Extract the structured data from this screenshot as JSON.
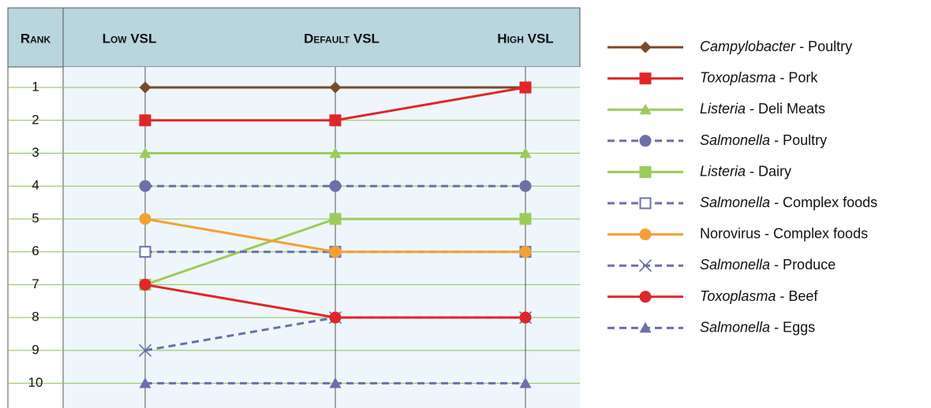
{
  "chart_data": {
    "type": "line",
    "rank_label": "Rank",
    "categories": [
      "Low VSL",
      "Default VSL",
      "High VSL"
    ],
    "ylim": [
      0.4,
      10.8
    ],
    "yticks": [
      1,
      2,
      3,
      4,
      5,
      6,
      7,
      8,
      9,
      10
    ],
    "y_inverted": true,
    "grid": true,
    "series": [
      {
        "name": "Campylobacter - Poultry",
        "italic": true,
        "color": "#7a4a2b",
        "marker": "diamond",
        "dashed": false,
        "values": [
          1,
          1,
          1
        ]
      },
      {
        "name": "Toxoplasma - Pork",
        "italic": true,
        "color": "#e0262a",
        "marker": "square",
        "dashed": false,
        "values": [
          2,
          2,
          1
        ]
      },
      {
        "name": "Listeria - Deli Meats",
        "italic": true,
        "color": "#9ccb5c",
        "marker": "triangle",
        "dashed": false,
        "values": [
          3,
          3,
          3
        ]
      },
      {
        "name": "Salmonella - Poultry",
        "italic": true,
        "color": "#6b70a9",
        "marker": "circle",
        "dashed": true,
        "values": [
          4,
          4,
          4
        ]
      },
      {
        "name": "Listeria - Dairy",
        "italic": true,
        "color": "#9ccb5c",
        "marker": "square",
        "dashed": false,
        "values": [
          7,
          5,
          5
        ]
      },
      {
        "name": "Salmonella - Complex foods",
        "italic": true,
        "color": "#6b70a9",
        "marker": "open-square",
        "dashed": true,
        "values": [
          6,
          6,
          6
        ]
      },
      {
        "name": "Norovirus - Complex foods",
        "italic": false,
        "color": "#f5a033",
        "marker": "circle",
        "dashed": false,
        "values": [
          5,
          6,
          6
        ]
      },
      {
        "name": "Salmonella - Produce",
        "italic": true,
        "color": "#6b70a9",
        "marker": "x",
        "dashed": true,
        "values": [
          9,
          8,
          8
        ]
      },
      {
        "name": "Toxoplasma - Beef",
        "italic": true,
        "color": "#e0262a",
        "marker": "circle",
        "dashed": false,
        "values": [
          7,
          8,
          8
        ]
      },
      {
        "name": "Salmonella - Eggs",
        "italic": true,
        "color": "#6b70a9",
        "marker": "triangle",
        "dashed": true,
        "values": [
          10,
          10,
          10
        ]
      }
    ]
  }
}
